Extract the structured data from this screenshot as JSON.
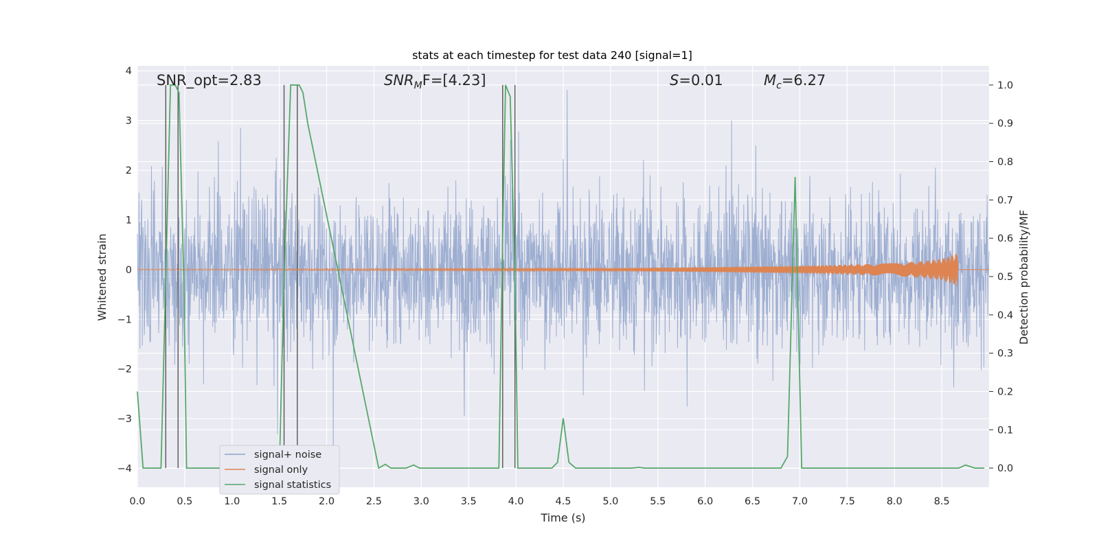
{
  "chart_data": {
    "type": "line",
    "title": "stats at each timestep for test data 240 [signal=1]",
    "xlabel": "Time (s)",
    "ylabel": "Whitened strain",
    "ylabel_right": "Detection probability/MF",
    "xlim": [
      0.0,
      9.0
    ],
    "ylim": [
      -4.38,
      4.1
    ],
    "ylim_right": [
      -0.05,
      1.05
    ],
    "xticks": [
      "0.0",
      "0.5",
      "1.0",
      "1.5",
      "2.0",
      "2.5",
      "3.0",
      "3.5",
      "4.0",
      "4.5",
      "5.0",
      "5.5",
      "6.0",
      "6.5",
      "7.0",
      "7.5",
      "8.0",
      "8.5"
    ],
    "xtick_values": [
      0.0,
      0.5,
      1.0,
      1.5,
      2.0,
      2.5,
      3.0,
      3.5,
      4.0,
      4.5,
      5.0,
      5.5,
      6.0,
      6.5,
      7.0,
      7.5,
      8.0,
      8.5
    ],
    "yticks": [
      "−4",
      "−3",
      "−2",
      "−1",
      "0",
      "1",
      "2",
      "3",
      "4"
    ],
    "ytick_values": [
      -4,
      -3,
      -2,
      -1,
      0,
      1,
      2,
      3,
      4
    ],
    "yticks_right": [
      "0.0",
      "0.1",
      "0.2",
      "0.3",
      "0.4",
      "0.5",
      "0.6",
      "0.7",
      "0.8",
      "0.9",
      "1.0"
    ],
    "ytick_values_right": [
      0.0,
      0.1,
      0.2,
      0.3,
      0.4,
      0.5,
      0.6,
      0.7,
      0.8,
      0.9,
      1.0
    ],
    "annotations": {
      "snr_opt": "SNR_opt=2.83",
      "snr_mf_base": "SNR",
      "snr_mf_sub": "M",
      "snr_mf_tail": "F=[4.23]",
      "s_base": "S",
      "s_tail": "=0.01",
      "mc_base": "M",
      "mc_sub": "c",
      "mc_tail": "=6.27"
    },
    "vertical_markers": [
      0.3,
      0.43,
      1.55,
      1.69,
      3.86,
      3.99
    ],
    "series": [
      {
        "name": "signal+ noise",
        "color": "#8fa3cb",
        "axis": "left",
        "description": "whitened noisy strain, roughly Gaussian, std ~1, peaks to about ±3.5",
        "amplitude_envelope": {
          "x": [
            0.0,
            9.0
          ],
          "core": [
            -1.5,
            1.5
          ],
          "peak": [
            -3.5,
            3.5
          ]
        }
      },
      {
        "name": "signal only",
        "color": "#dd8452",
        "axis": "left",
        "description": "chirp signal growing in amplitude toward merger",
        "x": [
          0.0,
          5.0,
          6.0,
          7.0,
          7.5,
          8.0,
          8.3,
          8.5,
          8.62,
          8.67
        ],
        "amplitude": [
          0.01,
          0.03,
          0.05,
          0.08,
          0.1,
          0.13,
          0.17,
          0.22,
          0.3,
          0.35
        ]
      },
      {
        "name": "signal statistics",
        "color": "#55a868",
        "axis": "right",
        "x": [
          0.0,
          0.06,
          0.25,
          0.29,
          0.35,
          0.37,
          0.4,
          0.44,
          0.49,
          0.52,
          1.5,
          1.55,
          1.62,
          1.71,
          1.75,
          1.8,
          2.55,
          2.62,
          2.68,
          2.84,
          2.92,
          2.98,
          3.82,
          3.86,
          3.89,
          3.94,
          3.99,
          4.02,
          4.38,
          4.44,
          4.5,
          4.56,
          4.63,
          5.22,
          5.3,
          5.36,
          6.8,
          6.87,
          6.95,
          7.02,
          8.68,
          8.75,
          8.85,
          8.95
        ],
        "y": [
          0.2,
          0.0,
          0.0,
          0.4,
          1.0,
          1.0,
          1.0,
          0.98,
          0.5,
          0.0,
          0.0,
          0.5,
          1.0,
          1.0,
          0.98,
          0.9,
          0.0,
          0.01,
          0.0,
          0.0,
          0.008,
          0.0,
          0.0,
          0.6,
          1.0,
          0.97,
          0.5,
          0.0,
          0.0,
          0.015,
          0.13,
          0.015,
          0.0,
          0.0,
          0.002,
          0.0,
          0.0,
          0.03,
          0.76,
          0.0,
          0.0,
          0.008,
          0.0,
          0.0
        ]
      }
    ],
    "legend_position": "lower-left",
    "grid": true
  }
}
